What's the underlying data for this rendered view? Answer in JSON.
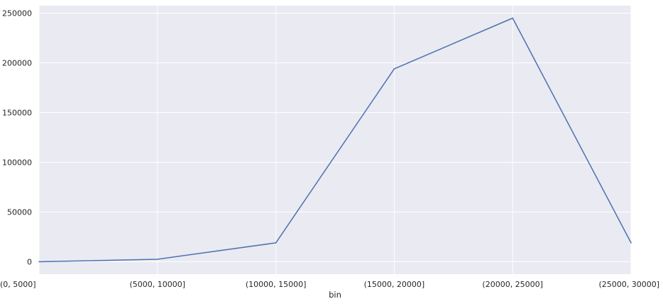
{
  "chart_data": {
    "type": "line",
    "title": "",
    "xlabel": "bin",
    "ylabel": "",
    "categories": [
      "(0, 5000]",
      "(5000, 10000]",
      "(10000, 15000]",
      "(15000, 20000]",
      "(20000, 25000]",
      "(25000, 30000]"
    ],
    "series": [
      {
        "values": [
          0,
          2500,
          19000,
          194000,
          245000,
          19000
        ]
      }
    ],
    "ylim": [
      -12500,
      257500
    ],
    "yticks": [
      0,
      50000,
      100000,
      150000,
      200000,
      250000
    ],
    "grid": true,
    "style": "seaborn darkgrid",
    "colors": {
      "line": "#4c72b0",
      "background": "#eaeaf2",
      "grid": "#ffffff"
    }
  }
}
